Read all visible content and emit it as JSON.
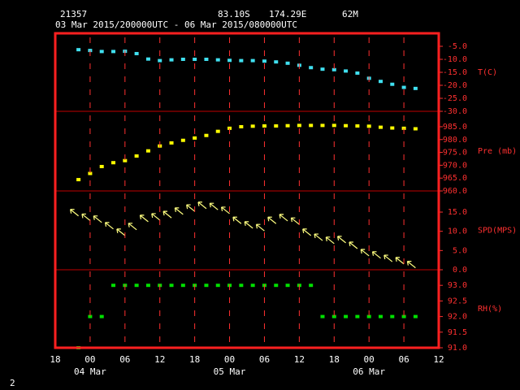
{
  "header": {
    "station": "21357",
    "lat": "83.10S",
    "lon": "174.29E",
    "elev": "62M",
    "period": "03 Mar 2015/200000UTC - 06 Mar 2015/080000UTC"
  },
  "page_number": "2",
  "chart_data": [
    {
      "type": "scatter",
      "ylabel": "T(C)",
      "color": "#40e0f0",
      "xlim": [
        -6,
        60
      ],
      "x": [
        -2,
        0,
        2,
        4,
        6,
        8,
        10,
        12,
        14,
        16,
        18,
        20,
        22,
        24,
        26,
        28,
        30,
        32,
        34,
        36,
        38,
        40,
        42,
        44,
        46,
        48,
        50,
        52,
        54,
        56
      ],
      "values": [
        -6.3,
        -6.6,
        -7.0,
        -7.0,
        -6.9,
        -7.8,
        -9.9,
        -10.5,
        -10.2,
        -10.0,
        -10.0,
        -10.0,
        -10.2,
        -10.4,
        -10.5,
        -10.5,
        -10.7,
        -11.0,
        -11.5,
        -12.3,
        -13.2,
        -13.8,
        -14.0,
        -14.5,
        -15.3,
        -17.3,
        -18.5,
        -19.6,
        -20.8,
        -21.2
      ],
      "ylim": [
        -30,
        0
      ],
      "yticks": [
        {
          "value": -5,
          "label": "-5.0"
        },
        {
          "value": -10,
          "label": "-10.0"
        },
        {
          "value": -15,
          "label": "-15.0"
        },
        {
          "value": -20,
          "label": "-20.0"
        },
        {
          "value": -25,
          "label": "-25.0"
        },
        {
          "value": -30,
          "label": "-30.0"
        }
      ]
    },
    {
      "type": "scatter",
      "ylabel": "Pre (mb)",
      "color": "#ffff00",
      "xlim": [
        -6,
        60
      ],
      "x": [
        -2,
        0,
        2,
        4,
        6,
        8,
        10,
        12,
        14,
        16,
        18,
        20,
        22,
        24,
        26,
        28,
        30,
        32,
        34,
        36,
        38,
        40,
        42,
        44,
        46,
        48,
        50,
        52,
        54,
        56
      ],
      "values": [
        964.4,
        966.8,
        969.5,
        971.0,
        971.8,
        973.6,
        975.6,
        977.5,
        978.7,
        979.7,
        980.6,
        981.6,
        983.2,
        984.4,
        985.0,
        985.2,
        985.3,
        985.3,
        985.4,
        985.5,
        985.5,
        985.5,
        985.5,
        985.4,
        985.3,
        985.2,
        984.8,
        984.5,
        984.4,
        984.2
      ],
      "ylim": [
        960,
        991
      ],
      "yticks": [
        {
          "value": 985,
          "label": "985.0"
        },
        {
          "value": 980,
          "label": "980.0"
        },
        {
          "value": 975,
          "label": "975.0"
        },
        {
          "value": 970,
          "label": "970.0"
        },
        {
          "value": 965,
          "label": "965.0"
        },
        {
          "value": 960,
          "label": "960.0"
        }
      ]
    },
    {
      "type": "arrows",
      "ylabel": "SPD(MPS)",
      "color": "#ffff80",
      "xlim": [
        -6,
        60
      ],
      "x": [
        -2,
        0,
        2,
        4,
        6,
        8,
        10,
        12,
        14,
        16,
        18,
        20,
        22,
        24,
        26,
        28,
        30,
        32,
        34,
        36,
        38,
        40,
        42,
        44,
        46,
        48,
        50,
        52,
        54,
        56
      ],
      "values": [
        14.0,
        12.8,
        12.3,
        10.6,
        8.9,
        10.4,
        12.5,
        12.9,
        13.5,
        14.4,
        15.2,
        15.9,
        15.6,
        14.6,
        12.0,
        10.8,
        10.1,
        12.0,
        12.7,
        11.8,
        8.9,
        7.6,
        6.8,
        7.0,
        5.5,
        3.6,
        3.0,
        2.1,
        1.5,
        0.5
      ],
      "ylim": [
        0,
        20.5
      ],
      "yticks": [
        {
          "value": 15,
          "label": "15.0"
        },
        {
          "value": 10,
          "label": "10.0"
        },
        {
          "value": 5,
          "label": "5.0"
        },
        {
          "value": 0,
          "label": "0.0"
        }
      ]
    },
    {
      "type": "scatter",
      "ylabel": "RH(%)",
      "color": "#00e000",
      "xlim": [
        -6,
        60
      ],
      "x": [
        -2,
        0,
        2,
        4,
        6,
        8,
        10,
        12,
        14,
        16,
        18,
        20,
        22,
        24,
        26,
        28,
        30,
        32,
        34,
        36,
        38,
        40,
        42,
        44,
        46,
        48,
        50,
        52,
        54,
        56
      ],
      "values": [
        91.0,
        92.0,
        92.0,
        93.0,
        93.0,
        93.0,
        93.0,
        93.0,
        93.0,
        93.0,
        93.0,
        93.0,
        93.0,
        93.0,
        93.0,
        93.0,
        93.0,
        93.0,
        93.0,
        93.0,
        93.0,
        92.0,
        92.0,
        92.0,
        92.0,
        92.0,
        92.0,
        92.0,
        92.0,
        92.0
      ],
      "ylim": [
        91,
        93.5
      ],
      "yticks": [
        {
          "value": 93,
          "label": "93.0"
        },
        {
          "value": 92.5,
          "label": "92.5"
        },
        {
          "value": 92,
          "label": "92.0"
        },
        {
          "value": 91.5,
          "label": "91.5"
        },
        {
          "value": 91,
          "label": "91.0"
        }
      ],
      "xticks": [
        {
          "value": -6,
          "label": "18"
        },
        {
          "value": 0,
          "label": "00"
        },
        {
          "value": 6,
          "label": "06"
        },
        {
          "value": 12,
          "label": "12"
        },
        {
          "value": 18,
          "label": "18"
        },
        {
          "value": 24,
          "label": "00"
        },
        {
          "value": 30,
          "label": "06"
        },
        {
          "value": 36,
          "label": "12"
        },
        {
          "value": 42,
          "label": "18"
        },
        {
          "value": 48,
          "label": "00"
        },
        {
          "value": 54,
          "label": "06"
        },
        {
          "value": 60,
          "label": "12"
        }
      ],
      "date_labels": [
        {
          "value": 0,
          "label": "04 Mar"
        },
        {
          "value": 24,
          "label": "05 Mar"
        },
        {
          "value": 48,
          "label": "06 Mar"
        }
      ]
    }
  ]
}
